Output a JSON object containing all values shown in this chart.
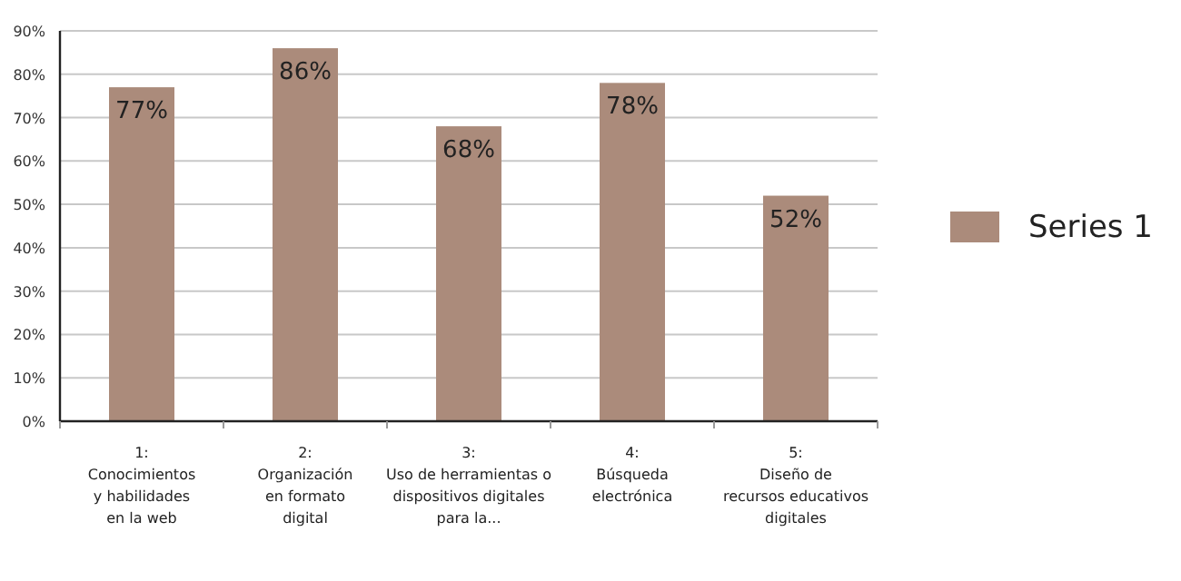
{
  "chart_data": {
    "type": "bar",
    "categories": [
      "1:\nConocimientos\ny habilidades\nen la web",
      "2:\nOrganización\nen formato\ndigital",
      "3:\nUso de herramientas o\ndispositivos digitales\npara la...",
      "4:\nBúsqueda\nelectrónica",
      "5:\nDiseño de\nrecursos educativos\ndigitales"
    ],
    "series": [
      {
        "name": "Series 1",
        "color": "#ab8b7b",
        "values": [
          77,
          86,
          68,
          78,
          52
        ]
      }
    ],
    "ylim": [
      0,
      90
    ],
    "yticks": [
      {
        "value": 0,
        "label": "0%"
      },
      {
        "value": 10,
        "label": "10%"
      },
      {
        "value": 20,
        "label": "20%"
      },
      {
        "value": 30,
        "label": "30%"
      },
      {
        "value": 40,
        "label": "40%"
      },
      {
        "value": 50,
        "label": "50%"
      },
      {
        "value": 60,
        "label": "60%"
      },
      {
        "value": 70,
        "label": "70%"
      },
      {
        "value": 80,
        "label": "80%"
      },
      {
        "value": 90,
        "label": "90%"
      }
    ],
    "value_labels": [
      "77%",
      "86%",
      "68%",
      "78%",
      "52%"
    ],
    "grid": "y",
    "legend": "right"
  }
}
